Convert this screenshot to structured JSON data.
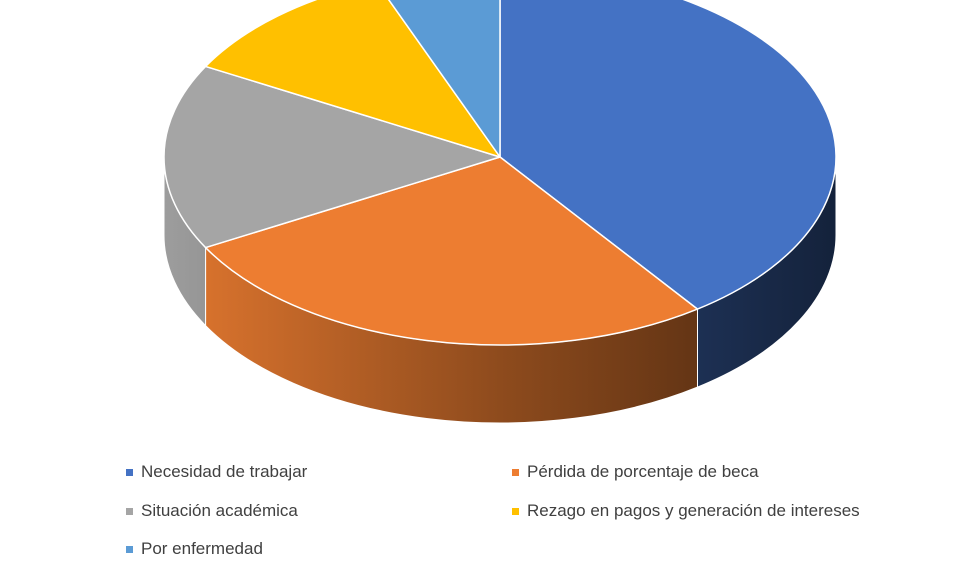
{
  "chart_data": {
    "type": "pie",
    "style": "3d",
    "categories": [
      "Necesidad de trabajar",
      "Pérdida de porcentaje de beca",
      "Situación académica",
      "Rezago en pagos y generación de intereses",
      "Por enfermedad"
    ],
    "values": [
      40,
      27,
      16,
      11,
      6
    ],
    "colors": [
      "#4472C4",
      "#ED7D31",
      "#A5A5A5",
      "#FFC000",
      "#5B9BD5"
    ],
    "legend_position": "bottom"
  }
}
